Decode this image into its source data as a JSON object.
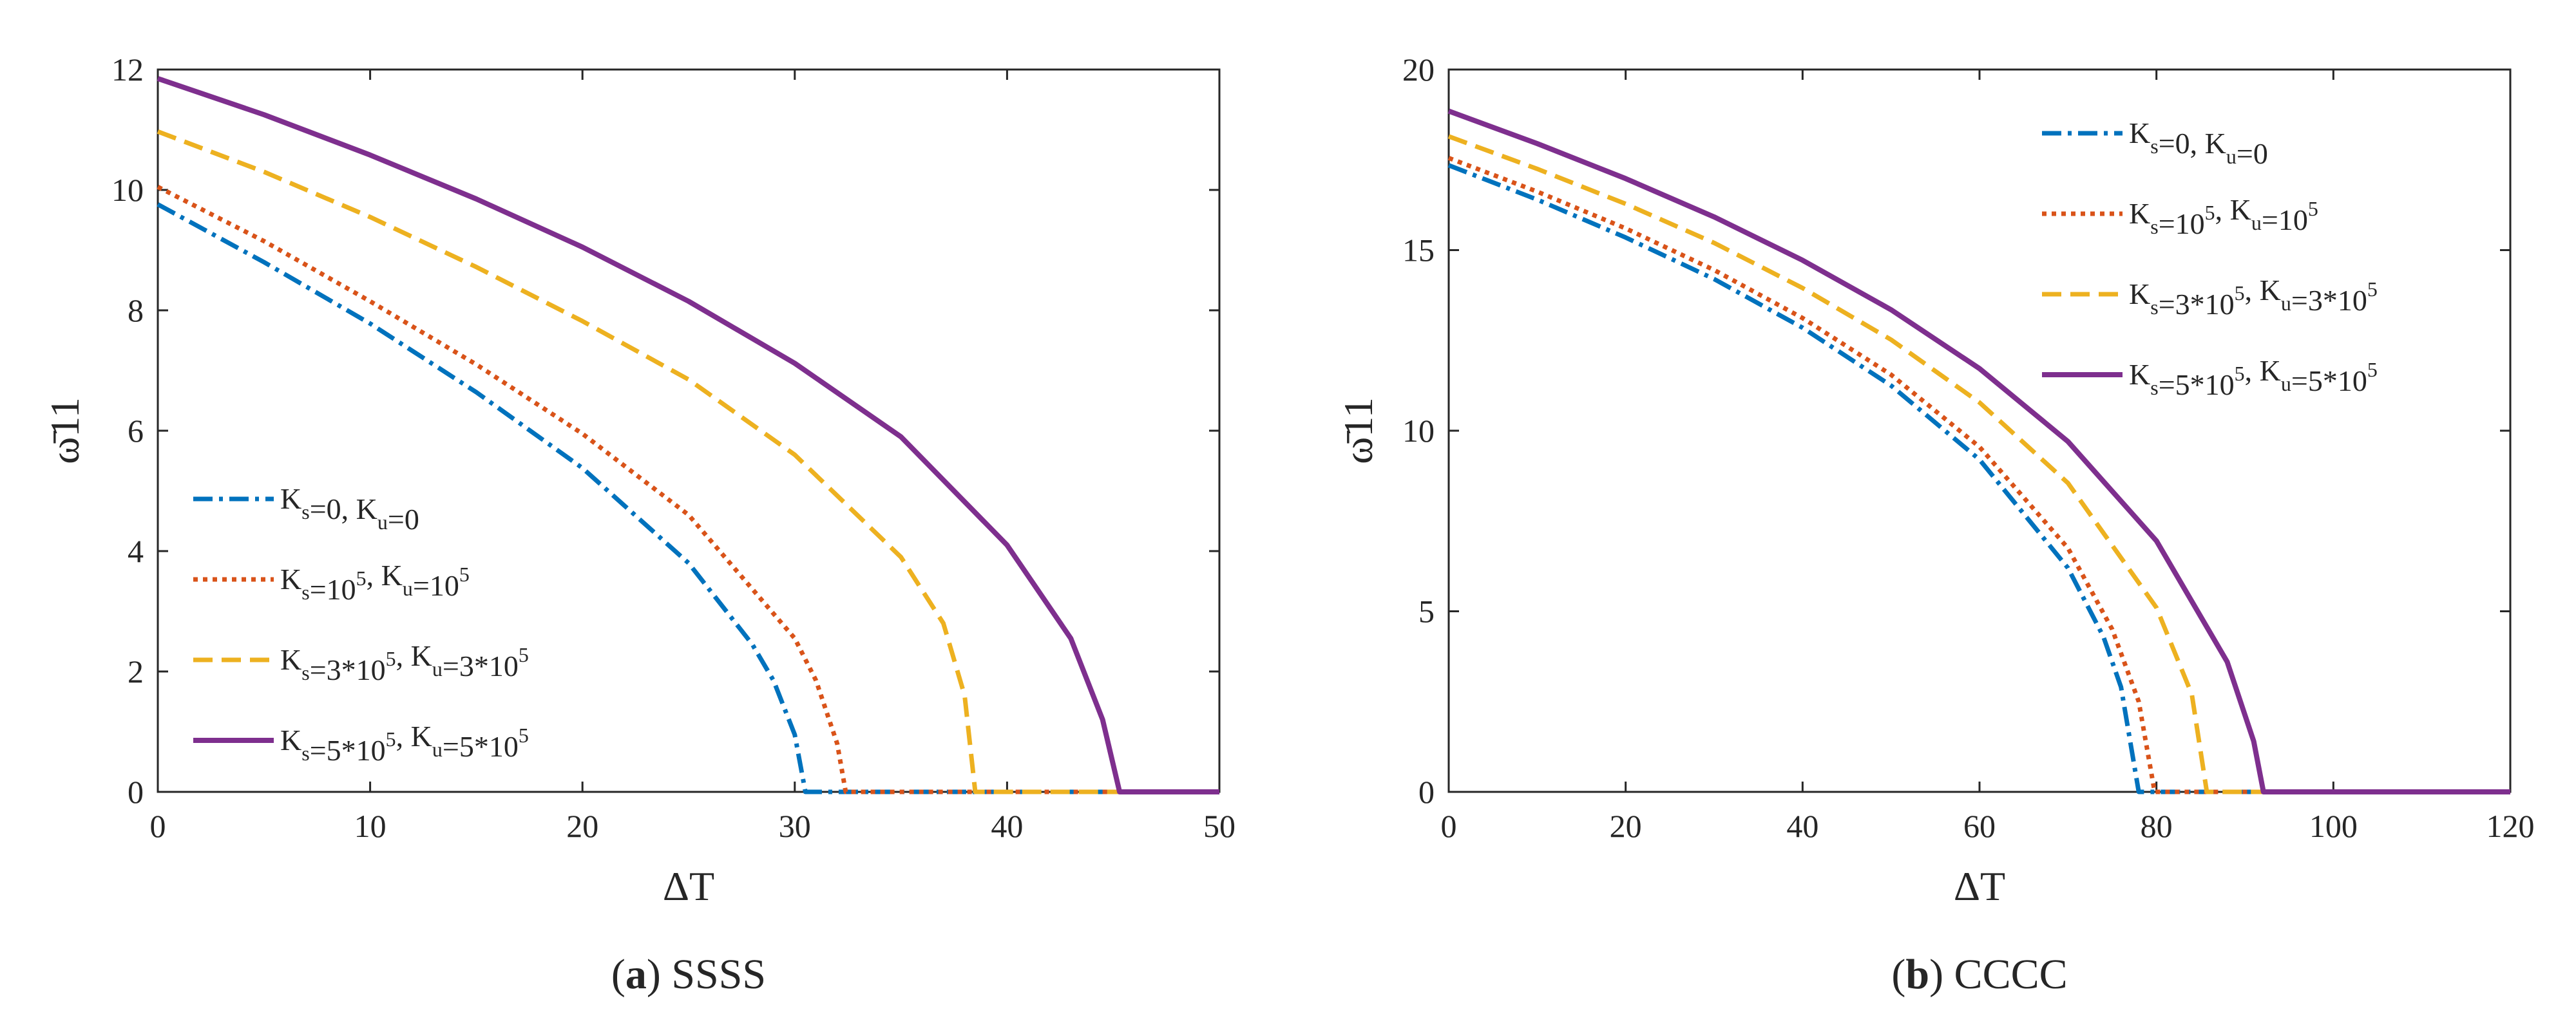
{
  "chart_data": [
    {
      "type": "line",
      "caption_letter": "a",
      "caption_text": "SSSS",
      "xlabel": "ΔT",
      "ylabel": "ω̄11",
      "xlim": [
        0,
        50
      ],
      "ylim": [
        0,
        12
      ],
      "xticks": [
        0,
        10,
        20,
        30,
        40,
        50
      ],
      "yticks": [
        0,
        2,
        4,
        6,
        8,
        10,
        12
      ],
      "grid": false,
      "legend_position": "bottom-left",
      "series": [
        {
          "name": "Ks=0, Ku=0",
          "color": "#0072BD",
          "dash": "dashdot",
          "x": [
            0,
            5,
            10,
            15,
            20,
            25,
            28,
            29,
            30,
            30.5,
            50
          ],
          "y": [
            9.76,
            8.8,
            7.78,
            6.64,
            5.38,
            3.8,
            2.45,
            1.85,
            0.95,
            0,
            0
          ]
        },
        {
          "name": "Ks=10^5, Ku=10^5",
          "color": "#D95319",
          "dash": "dotted",
          "x": [
            0,
            5,
            10,
            15,
            20,
            25,
            30,
            31,
            32,
            32.4,
            50
          ],
          "y": [
            10.05,
            9.15,
            8.15,
            7.1,
            5.95,
            4.6,
            2.55,
            1.85,
            0.8,
            0,
            0
          ]
        },
        {
          "name": "Ks=3*10^5, Ku=3*10^5",
          "color": "#EDB120",
          "dash": "dashed",
          "x": [
            0,
            5,
            10,
            15,
            20,
            25,
            30,
            35,
            37,
            38,
            38.5,
            50
          ],
          "y": [
            10.97,
            10.3,
            9.55,
            8.72,
            7.82,
            6.85,
            5.6,
            3.9,
            2.8,
            1.6,
            0,
            0
          ]
        },
        {
          "name": "Ks=5*10^5, Ku=5*10^5",
          "color": "#7E2F8E",
          "dash": "solid",
          "x": [
            0,
            5,
            10,
            15,
            20,
            25,
            30,
            35,
            40,
            43,
            44.5,
            45.3,
            50
          ],
          "y": [
            11.85,
            11.25,
            10.58,
            9.85,
            9.05,
            8.15,
            7.12,
            5.9,
            4.1,
            2.55,
            1.2,
            0,
            0
          ]
        }
      ]
    },
    {
      "type": "line",
      "caption_letter": "b",
      "caption_text": "CCCC",
      "xlabel": "ΔT",
      "ylabel": "ω̄11",
      "xlim": [
        0,
        120
      ],
      "ylim": [
        0,
        20
      ],
      "xticks": [
        0,
        20,
        40,
        60,
        80,
        100,
        120
      ],
      "yticks": [
        0,
        5,
        10,
        15,
        20
      ],
      "grid": false,
      "legend_position": "top-right",
      "series": [
        {
          "name": "Ks=0, Ku=0",
          "color": "#0072BD",
          "dash": "dashdot",
          "x": [
            0,
            10,
            20,
            30,
            40,
            50,
            60,
            70,
            74,
            76,
            78,
            120
          ],
          "y": [
            17.35,
            16.4,
            15.35,
            14.2,
            12.85,
            11.25,
            9.2,
            6.2,
            4.3,
            2.9,
            0,
            0
          ]
        },
        {
          "name": "Ks=10^5, Ku=10^5",
          "color": "#D95319",
          "dash": "dotted",
          "x": [
            0,
            10,
            20,
            30,
            40,
            50,
            60,
            70,
            75,
            78,
            79.8,
            120
          ],
          "y": [
            17.55,
            16.62,
            15.6,
            14.45,
            13.12,
            11.55,
            9.55,
            6.75,
            4.5,
            2.5,
            0,
            0
          ]
        },
        {
          "name": "Ks=3*10^5, Ku=3*10^5",
          "color": "#EDB120",
          "dash": "dashed",
          "x": [
            0,
            10,
            20,
            30,
            40,
            50,
            60,
            70,
            80,
            84,
            85.7,
            120
          ],
          "y": [
            18.15,
            17.25,
            16.28,
            15.2,
            13.95,
            12.52,
            10.78,
            8.55,
            5.1,
            2.7,
            0,
            0
          ]
        },
        {
          "name": "Ks=5*10^5, Ku=5*10^5",
          "color": "#7E2F8E",
          "dash": "solid",
          "x": [
            0,
            10,
            20,
            30,
            40,
            50,
            60,
            70,
            80,
            88,
            91,
            92.1,
            120
          ],
          "y": [
            18.85,
            17.95,
            16.98,
            15.92,
            14.72,
            13.35,
            11.72,
            9.7,
            6.95,
            3.6,
            1.4,
            0,
            0
          ]
        }
      ]
    }
  ],
  "legend_display": [
    {
      "k": "s",
      "a": "0",
      "a_sup": "",
      "u": "u",
      "b": "0",
      "b_sup": ""
    },
    {
      "k": "s",
      "a": "10",
      "a_sup": "5",
      "u": "u",
      "b": "10",
      "b_sup": "5"
    },
    {
      "k": "s",
      "a": "3*10",
      "a_sup": "5",
      "u": "u",
      "b": "3*10",
      "b_sup": "5"
    },
    {
      "k": "s",
      "a": "5*10",
      "a_sup": "5",
      "u": "u",
      "b": "5*10",
      "b_sup": "5"
    }
  ]
}
